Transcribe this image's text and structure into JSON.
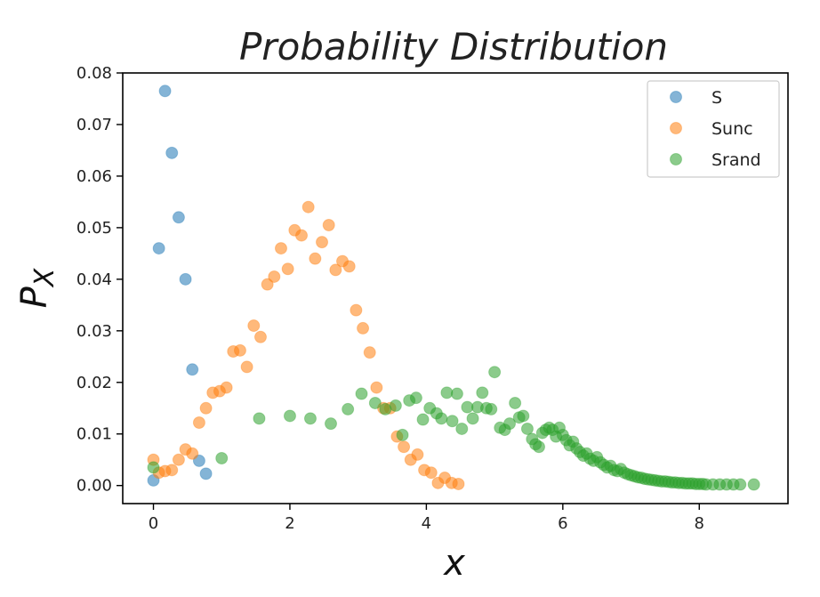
{
  "chart_data": {
    "type": "scatter",
    "title": "Probability Distribution",
    "xlabel": "x",
    "ylabel": "P",
    "ylabel_sub": "X",
    "xlim": [
      -0.45,
      9.3
    ],
    "ylim": [
      -0.0035,
      0.08
    ],
    "xticks": [
      0,
      2,
      4,
      6,
      8
    ],
    "xtick_labels": [
      "0",
      "2",
      "4",
      "6",
      "8"
    ],
    "yticks": [
      0.0,
      0.01,
      0.02,
      0.03,
      0.04,
      0.05,
      0.06,
      0.07,
      0.08
    ],
    "ytick_labels": [
      "0.00",
      "0.01",
      "0.02",
      "0.03",
      "0.04",
      "0.05",
      "0.06",
      "0.07",
      "0.08"
    ],
    "grid": false,
    "legend_position": "top-right",
    "series": [
      {
        "name": "S",
        "color": "#1f77b4",
        "points": [
          [
            0.0,
            0.001
          ],
          [
            0.08,
            0.046
          ],
          [
            0.17,
            0.0765
          ],
          [
            0.27,
            0.0645
          ],
          [
            0.37,
            0.052
          ],
          [
            0.47,
            0.04
          ],
          [
            0.57,
            0.0225
          ],
          [
            0.67,
            0.0048
          ],
          [
            0.77,
            0.0023
          ]
        ]
      },
      {
        "name": "Sunc",
        "color": "#ff7f0e",
        "points": [
          [
            0.0,
            0.005
          ],
          [
            0.08,
            0.0025
          ],
          [
            0.17,
            0.0028
          ],
          [
            0.27,
            0.003
          ],
          [
            0.37,
            0.005
          ],
          [
            0.47,
            0.007
          ],
          [
            0.57,
            0.0062
          ],
          [
            0.67,
            0.0122
          ],
          [
            0.77,
            0.015
          ],
          [
            0.87,
            0.018
          ],
          [
            0.97,
            0.0183
          ],
          [
            1.07,
            0.019
          ],
          [
            1.17,
            0.026
          ],
          [
            1.27,
            0.0262
          ],
          [
            1.37,
            0.023
          ],
          [
            1.47,
            0.031
          ],
          [
            1.57,
            0.0288
          ],
          [
            1.67,
            0.039
          ],
          [
            1.77,
            0.0405
          ],
          [
            1.87,
            0.046
          ],
          [
            1.97,
            0.042
          ],
          [
            2.07,
            0.0495
          ],
          [
            2.17,
            0.0485
          ],
          [
            2.27,
            0.054
          ],
          [
            2.37,
            0.044
          ],
          [
            2.47,
            0.0472
          ],
          [
            2.57,
            0.0505
          ],
          [
            2.67,
            0.0418
          ],
          [
            2.77,
            0.0435
          ],
          [
            2.87,
            0.0425
          ],
          [
            2.97,
            0.034
          ],
          [
            3.07,
            0.0305
          ],
          [
            3.17,
            0.0258
          ],
          [
            3.27,
            0.019
          ],
          [
            3.37,
            0.015
          ],
          [
            3.47,
            0.015
          ],
          [
            3.57,
            0.0095
          ],
          [
            3.67,
            0.0075
          ],
          [
            3.77,
            0.005
          ],
          [
            3.87,
            0.006
          ],
          [
            3.97,
            0.003
          ],
          [
            4.07,
            0.0025
          ],
          [
            4.17,
            0.0005
          ],
          [
            4.27,
            0.0015
          ],
          [
            4.37,
            0.0005
          ],
          [
            4.47,
            0.0003
          ]
        ]
      },
      {
        "name": "Srand",
        "color": "#2ca02c",
        "points": [
          [
            0.0,
            0.0035
          ],
          [
            1.0,
            0.0053
          ],
          [
            1.55,
            0.013
          ],
          [
            2.0,
            0.0135
          ],
          [
            2.3,
            0.013
          ],
          [
            2.6,
            0.012
          ],
          [
            2.85,
            0.0148
          ],
          [
            3.05,
            0.0178
          ],
          [
            3.25,
            0.016
          ],
          [
            3.4,
            0.0148
          ],
          [
            3.55,
            0.0155
          ],
          [
            3.65,
            0.0098
          ],
          [
            3.75,
            0.0165
          ],
          [
            3.85,
            0.017
          ],
          [
            3.95,
            0.0128
          ],
          [
            4.05,
            0.015
          ],
          [
            4.15,
            0.014
          ],
          [
            4.22,
            0.013
          ],
          [
            4.3,
            0.018
          ],
          [
            4.38,
            0.0125
          ],
          [
            4.45,
            0.0178
          ],
          [
            4.52,
            0.011
          ],
          [
            4.6,
            0.0152
          ],
          [
            4.68,
            0.013
          ],
          [
            4.75,
            0.0152
          ],
          [
            4.82,
            0.018
          ],
          [
            4.88,
            0.015
          ],
          [
            4.95,
            0.0148
          ],
          [
            5.0,
            0.022
          ],
          [
            5.08,
            0.0112
          ],
          [
            5.15,
            0.0108
          ],
          [
            5.22,
            0.012
          ],
          [
            5.3,
            0.016
          ],
          [
            5.36,
            0.0132
          ],
          [
            5.42,
            0.0135
          ],
          [
            5.48,
            0.011
          ],
          [
            5.55,
            0.009
          ],
          [
            5.6,
            0.008
          ],
          [
            5.65,
            0.0075
          ],
          [
            5.7,
            0.0102
          ],
          [
            5.75,
            0.0108
          ],
          [
            5.8,
            0.0112
          ],
          [
            5.85,
            0.0108
          ],
          [
            5.9,
            0.0095
          ],
          [
            5.95,
            0.0112
          ],
          [
            6.0,
            0.0098
          ],
          [
            6.05,
            0.0088
          ],
          [
            6.1,
            0.0078
          ],
          [
            6.15,
            0.0085
          ],
          [
            6.2,
            0.0072
          ],
          [
            6.25,
            0.0065
          ],
          [
            6.3,
            0.0058
          ],
          [
            6.35,
            0.0062
          ],
          [
            6.4,
            0.0052
          ],
          [
            6.45,
            0.0048
          ],
          [
            6.5,
            0.0055
          ],
          [
            6.55,
            0.0045
          ],
          [
            6.6,
            0.004
          ],
          [
            6.65,
            0.0035
          ],
          [
            6.7,
            0.0038
          ],
          [
            6.75,
            0.003
          ],
          [
            6.8,
            0.0028
          ],
          [
            6.85,
            0.0032
          ],
          [
            6.9,
            0.0025
          ],
          [
            6.95,
            0.0022
          ],
          [
            7.0,
            0.002
          ],
          [
            7.05,
            0.0018
          ],
          [
            7.1,
            0.0016
          ],
          [
            7.15,
            0.0015
          ],
          [
            7.2,
            0.0013
          ],
          [
            7.25,
            0.0012
          ],
          [
            7.3,
            0.0011
          ],
          [
            7.35,
            0.001
          ],
          [
            7.4,
            0.0009
          ],
          [
            7.45,
            0.0008
          ],
          [
            7.5,
            0.0008
          ],
          [
            7.55,
            0.0007
          ],
          [
            7.6,
            0.0006
          ],
          [
            7.65,
            0.0006
          ],
          [
            7.7,
            0.0005
          ],
          [
            7.75,
            0.0005
          ],
          [
            7.8,
            0.0004
          ],
          [
            7.85,
            0.0004
          ],
          [
            7.9,
            0.0004
          ],
          [
            7.95,
            0.0003
          ],
          [
            8.0,
            0.0003
          ],
          [
            8.05,
            0.0003
          ],
          [
            8.1,
            0.0002
          ],
          [
            8.2,
            0.0002
          ],
          [
            8.3,
            0.0002
          ],
          [
            8.4,
            0.0002
          ],
          [
            8.5,
            0.0002
          ],
          [
            8.6,
            0.0002
          ],
          [
            8.8,
            0.0002
          ]
        ]
      }
    ]
  }
}
